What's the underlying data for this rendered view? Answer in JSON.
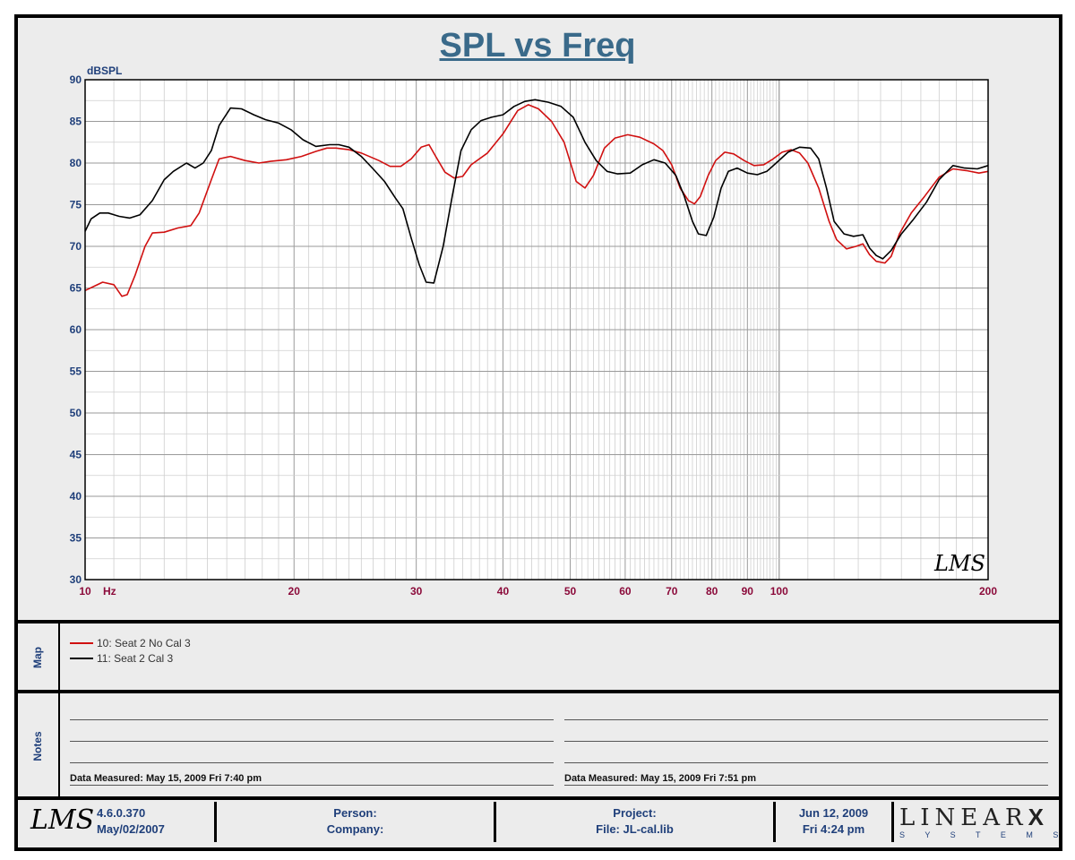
{
  "chart_data": {
    "type": "line",
    "title": "SPL vs Freq",
    "ylabel": "dBSPL",
    "xunit": "Hz",
    "xscale": "log",
    "xlim": [
      10,
      200
    ],
    "ylim": [
      30,
      90
    ],
    "y_ticks": [
      30,
      35,
      40,
      45,
      50,
      55,
      60,
      65,
      70,
      75,
      80,
      85,
      90
    ],
    "x_tick_labels": [
      {
        "value": 10,
        "label": "10"
      },
      {
        "value": 20,
        "label": "20"
      },
      {
        "value": 30,
        "label": "30"
      },
      {
        "value": 40,
        "label": "40"
      },
      {
        "value": 50,
        "label": "50"
      },
      {
        "value": 60,
        "label": "60"
      },
      {
        "value": 70,
        "label": "70"
      },
      {
        "value": 80,
        "label": "80"
      },
      {
        "value": 90,
        "label": "90"
      },
      {
        "value": 100,
        "label": "100"
      },
      {
        "value": 200,
        "label": "200"
      }
    ],
    "grid": true,
    "series": [
      {
        "name": "10: Seat 2 No Cal 3",
        "color": "#d01010",
        "points": [
          [
            10,
            64.7
          ],
          [
            10.3,
            65.2
          ],
          [
            10.6,
            65.7
          ],
          [
            11.0,
            65.4
          ],
          [
            11.3,
            64.0
          ],
          [
            11.5,
            64.2
          ],
          [
            11.8,
            66.5
          ],
          [
            12.2,
            70.0
          ],
          [
            12.5,
            71.6
          ],
          [
            13.0,
            71.7
          ],
          [
            13.6,
            72.2
          ],
          [
            14.2,
            72.5
          ],
          [
            14.6,
            74.0
          ],
          [
            15.2,
            78.0
          ],
          [
            15.6,
            80.5
          ],
          [
            16.2,
            80.8
          ],
          [
            17.0,
            80.3
          ],
          [
            17.8,
            80.0
          ],
          [
            18.5,
            80.2
          ],
          [
            19.5,
            80.4
          ],
          [
            20.5,
            80.8
          ],
          [
            21.5,
            81.4
          ],
          [
            22.3,
            81.8
          ],
          [
            23.0,
            81.8
          ],
          [
            24.0,
            81.6
          ],
          [
            25.0,
            81.2
          ],
          [
            26.5,
            80.3
          ],
          [
            27.5,
            79.6
          ],
          [
            28.5,
            79.6
          ],
          [
            29.5,
            80.5
          ],
          [
            30.5,
            81.9
          ],
          [
            31.3,
            82.2
          ],
          [
            32.0,
            80.8
          ],
          [
            33.0,
            78.9
          ],
          [
            34.0,
            78.2
          ],
          [
            35.0,
            78.4
          ],
          [
            36.0,
            79.8
          ],
          [
            38.0,
            81.2
          ],
          [
            40.0,
            83.5
          ],
          [
            42.0,
            86.3
          ],
          [
            43.5,
            87.0
          ],
          [
            45.0,
            86.5
          ],
          [
            47.0,
            85.0
          ],
          [
            49.0,
            82.5
          ],
          [
            51.0,
            77.8
          ],
          [
            52.5,
            77.0
          ],
          [
            54.0,
            78.5
          ],
          [
            56.0,
            81.8
          ],
          [
            58.0,
            83.0
          ],
          [
            60.5,
            83.4
          ],
          [
            63.0,
            83.1
          ],
          [
            66.0,
            82.3
          ],
          [
            68.0,
            81.5
          ],
          [
            70.0,
            79.8
          ],
          [
            72.0,
            77.0
          ],
          [
            74.0,
            75.5
          ],
          [
            75.5,
            75.1
          ],
          [
            77.0,
            76.0
          ],
          [
            79.0,
            78.5
          ],
          [
            81.0,
            80.3
          ],
          [
            83.5,
            81.3
          ],
          [
            86.0,
            81.1
          ],
          [
            89.0,
            80.3
          ],
          [
            92.0,
            79.7
          ],
          [
            95.0,
            79.8
          ],
          [
            98.0,
            80.5
          ],
          [
            101.0,
            81.3
          ],
          [
            104.0,
            81.6
          ],
          [
            107.0,
            81.2
          ],
          [
            110.0,
            80.0
          ],
          [
            114.0,
            77.0
          ],
          [
            118.0,
            73.0
          ],
          [
            121.0,
            70.8
          ],
          [
            125.0,
            69.7
          ],
          [
            129.0,
            70.0
          ],
          [
            132.0,
            70.3
          ],
          [
            135.0,
            69.0
          ],
          [
            138.0,
            68.2
          ],
          [
            142.0,
            68.0
          ],
          [
            145.0,
            68.8
          ],
          [
            149.0,
            71.5
          ],
          [
            155.0,
            74.0
          ],
          [
            162.0,
            76.0
          ],
          [
            170.0,
            78.3
          ],
          [
            178.0,
            79.3
          ],
          [
            186.0,
            79.1
          ],
          [
            194.0,
            78.8
          ],
          [
            200.0,
            79.0
          ]
        ]
      },
      {
        "name": "11: Seat 2 Cal 3",
        "color": "#000000",
        "points": [
          [
            10,
            71.8
          ],
          [
            10.2,
            73.3
          ],
          [
            10.5,
            74.0
          ],
          [
            10.8,
            74.0
          ],
          [
            11.2,
            73.6
          ],
          [
            11.6,
            73.4
          ],
          [
            12.0,
            73.8
          ],
          [
            12.5,
            75.5
          ],
          [
            13.0,
            78.0
          ],
          [
            13.4,
            79.0
          ],
          [
            14.0,
            80.0
          ],
          [
            14.4,
            79.4
          ],
          [
            14.8,
            80.0
          ],
          [
            15.2,
            81.5
          ],
          [
            15.6,
            84.5
          ],
          [
            16.2,
            86.6
          ],
          [
            16.8,
            86.5
          ],
          [
            17.5,
            85.8
          ],
          [
            18.2,
            85.2
          ],
          [
            19.0,
            84.8
          ],
          [
            19.8,
            84.0
          ],
          [
            20.6,
            82.8
          ],
          [
            21.5,
            82.0
          ],
          [
            22.5,
            82.2
          ],
          [
            23.2,
            82.2
          ],
          [
            24.0,
            81.9
          ],
          [
            25.0,
            80.8
          ],
          [
            26.0,
            79.3
          ],
          [
            27.0,
            77.8
          ],
          [
            28.0,
            75.8
          ],
          [
            28.7,
            74.5
          ],
          [
            29.5,
            71.0
          ],
          [
            30.3,
            67.8
          ],
          [
            31.0,
            65.7
          ],
          [
            31.8,
            65.6
          ],
          [
            32.8,
            70.0
          ],
          [
            33.8,
            76.0
          ],
          [
            34.8,
            81.5
          ],
          [
            36.0,
            84.0
          ],
          [
            37.2,
            85.1
          ],
          [
            38.5,
            85.5
          ],
          [
            40.0,
            85.8
          ],
          [
            41.5,
            86.8
          ],
          [
            43.0,
            87.4
          ],
          [
            44.5,
            87.6
          ],
          [
            46.5,
            87.3
          ],
          [
            48.5,
            86.8
          ],
          [
            50.5,
            85.5
          ],
          [
            52.5,
            82.5
          ],
          [
            54.5,
            80.3
          ],
          [
            56.5,
            79.0
          ],
          [
            58.5,
            78.7
          ],
          [
            61.0,
            78.8
          ],
          [
            63.5,
            79.8
          ],
          [
            66.0,
            80.4
          ],
          [
            68.5,
            80.0
          ],
          [
            71.0,
            78.5
          ],
          [
            73.0,
            76.0
          ],
          [
            75.0,
            73.0
          ],
          [
            76.5,
            71.5
          ],
          [
            78.5,
            71.3
          ],
          [
            80.5,
            73.5
          ],
          [
            82.5,
            77.0
          ],
          [
            84.5,
            79.0
          ],
          [
            87.0,
            79.4
          ],
          [
            90.0,
            78.8
          ],
          [
            93.0,
            78.6
          ],
          [
            96.0,
            79.0
          ],
          [
            99.0,
            80.0
          ],
          [
            103.0,
            81.3
          ],
          [
            107.0,
            81.9
          ],
          [
            111.0,
            81.8
          ],
          [
            114.0,
            80.5
          ],
          [
            117.0,
            77.0
          ],
          [
            120.0,
            73.0
          ],
          [
            124.0,
            71.5
          ],
          [
            128.0,
            71.2
          ],
          [
            132.0,
            71.4
          ],
          [
            135.0,
            69.8
          ],
          [
            138.0,
            68.9
          ],
          [
            141.0,
            68.5
          ],
          [
            145.0,
            69.5
          ],
          [
            150.0,
            71.5
          ],
          [
            156.0,
            73.2
          ],
          [
            163.0,
            75.3
          ],
          [
            170.0,
            78.0
          ],
          [
            178.0,
            79.7
          ],
          [
            185.0,
            79.4
          ],
          [
            193.0,
            79.3
          ],
          [
            200.0,
            79.7
          ]
        ]
      }
    ]
  },
  "panels": {
    "map_label": "Map",
    "notes_label": "Notes",
    "notes_left": "Data Measured: May 15, 2009  Fri  7:40 pm",
    "notes_right": "Data Measured: May 15, 2009  Fri  7:51 pm"
  },
  "footer": {
    "logo": "LMS",
    "version": "4.6.0.370",
    "version_date": "May/02/2007",
    "person": "Person:",
    "company": "Company:",
    "project": "Project:",
    "file": "File: JL-cal.lib",
    "date": "Jun 12, 2009",
    "day_time": "Fri  4:24 pm",
    "brand": "LINEAR",
    "brand_x": "X",
    "brand_sub": "S Y S T E M S"
  },
  "watermark": "LMS"
}
